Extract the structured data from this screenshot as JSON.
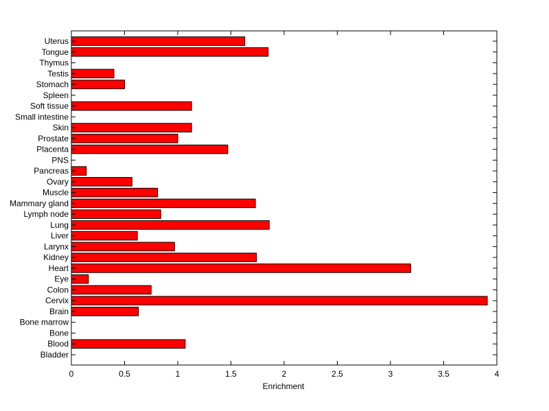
{
  "chart_data": {
    "type": "bar",
    "orientation": "horizontal",
    "title": "",
    "xlabel": "Enrichment",
    "ylabel": "",
    "xlim": [
      0,
      4
    ],
    "xticks": [
      "0",
      "0.5",
      "1",
      "1.5",
      "2",
      "2.5",
      "3",
      "3.5",
      "4"
    ],
    "grid": false,
    "bar_color": "#ff0000",
    "categories": [
      "Bladder",
      "Blood",
      "Bone",
      "Bone marrow",
      "Brain",
      "Cervix",
      "Colon",
      "Eye",
      "Heart",
      "Kidney",
      "Larynx",
      "Liver",
      "Lung",
      "Lymph node",
      "Mammary gland",
      "Muscle",
      "Ovary",
      "Pancreas",
      "PNS",
      "Placenta",
      "Prostate",
      "Skin",
      "Small intestine",
      "Soft tissue",
      "Spleen",
      "Stomach",
      "Testis",
      "Thymus",
      "Tongue",
      "Uterus"
    ],
    "values": [
      0,
      1.07,
      0,
      0,
      0.63,
      3.91,
      0.75,
      0.16,
      3.19,
      1.74,
      0.97,
      0.62,
      1.86,
      0.84,
      1.73,
      0.81,
      0.57,
      0.14,
      0,
      1.47,
      1.0,
      1.13,
      0,
      1.13,
      0,
      0.5,
      0.4,
      0,
      1.85,
      1.63
    ]
  }
}
